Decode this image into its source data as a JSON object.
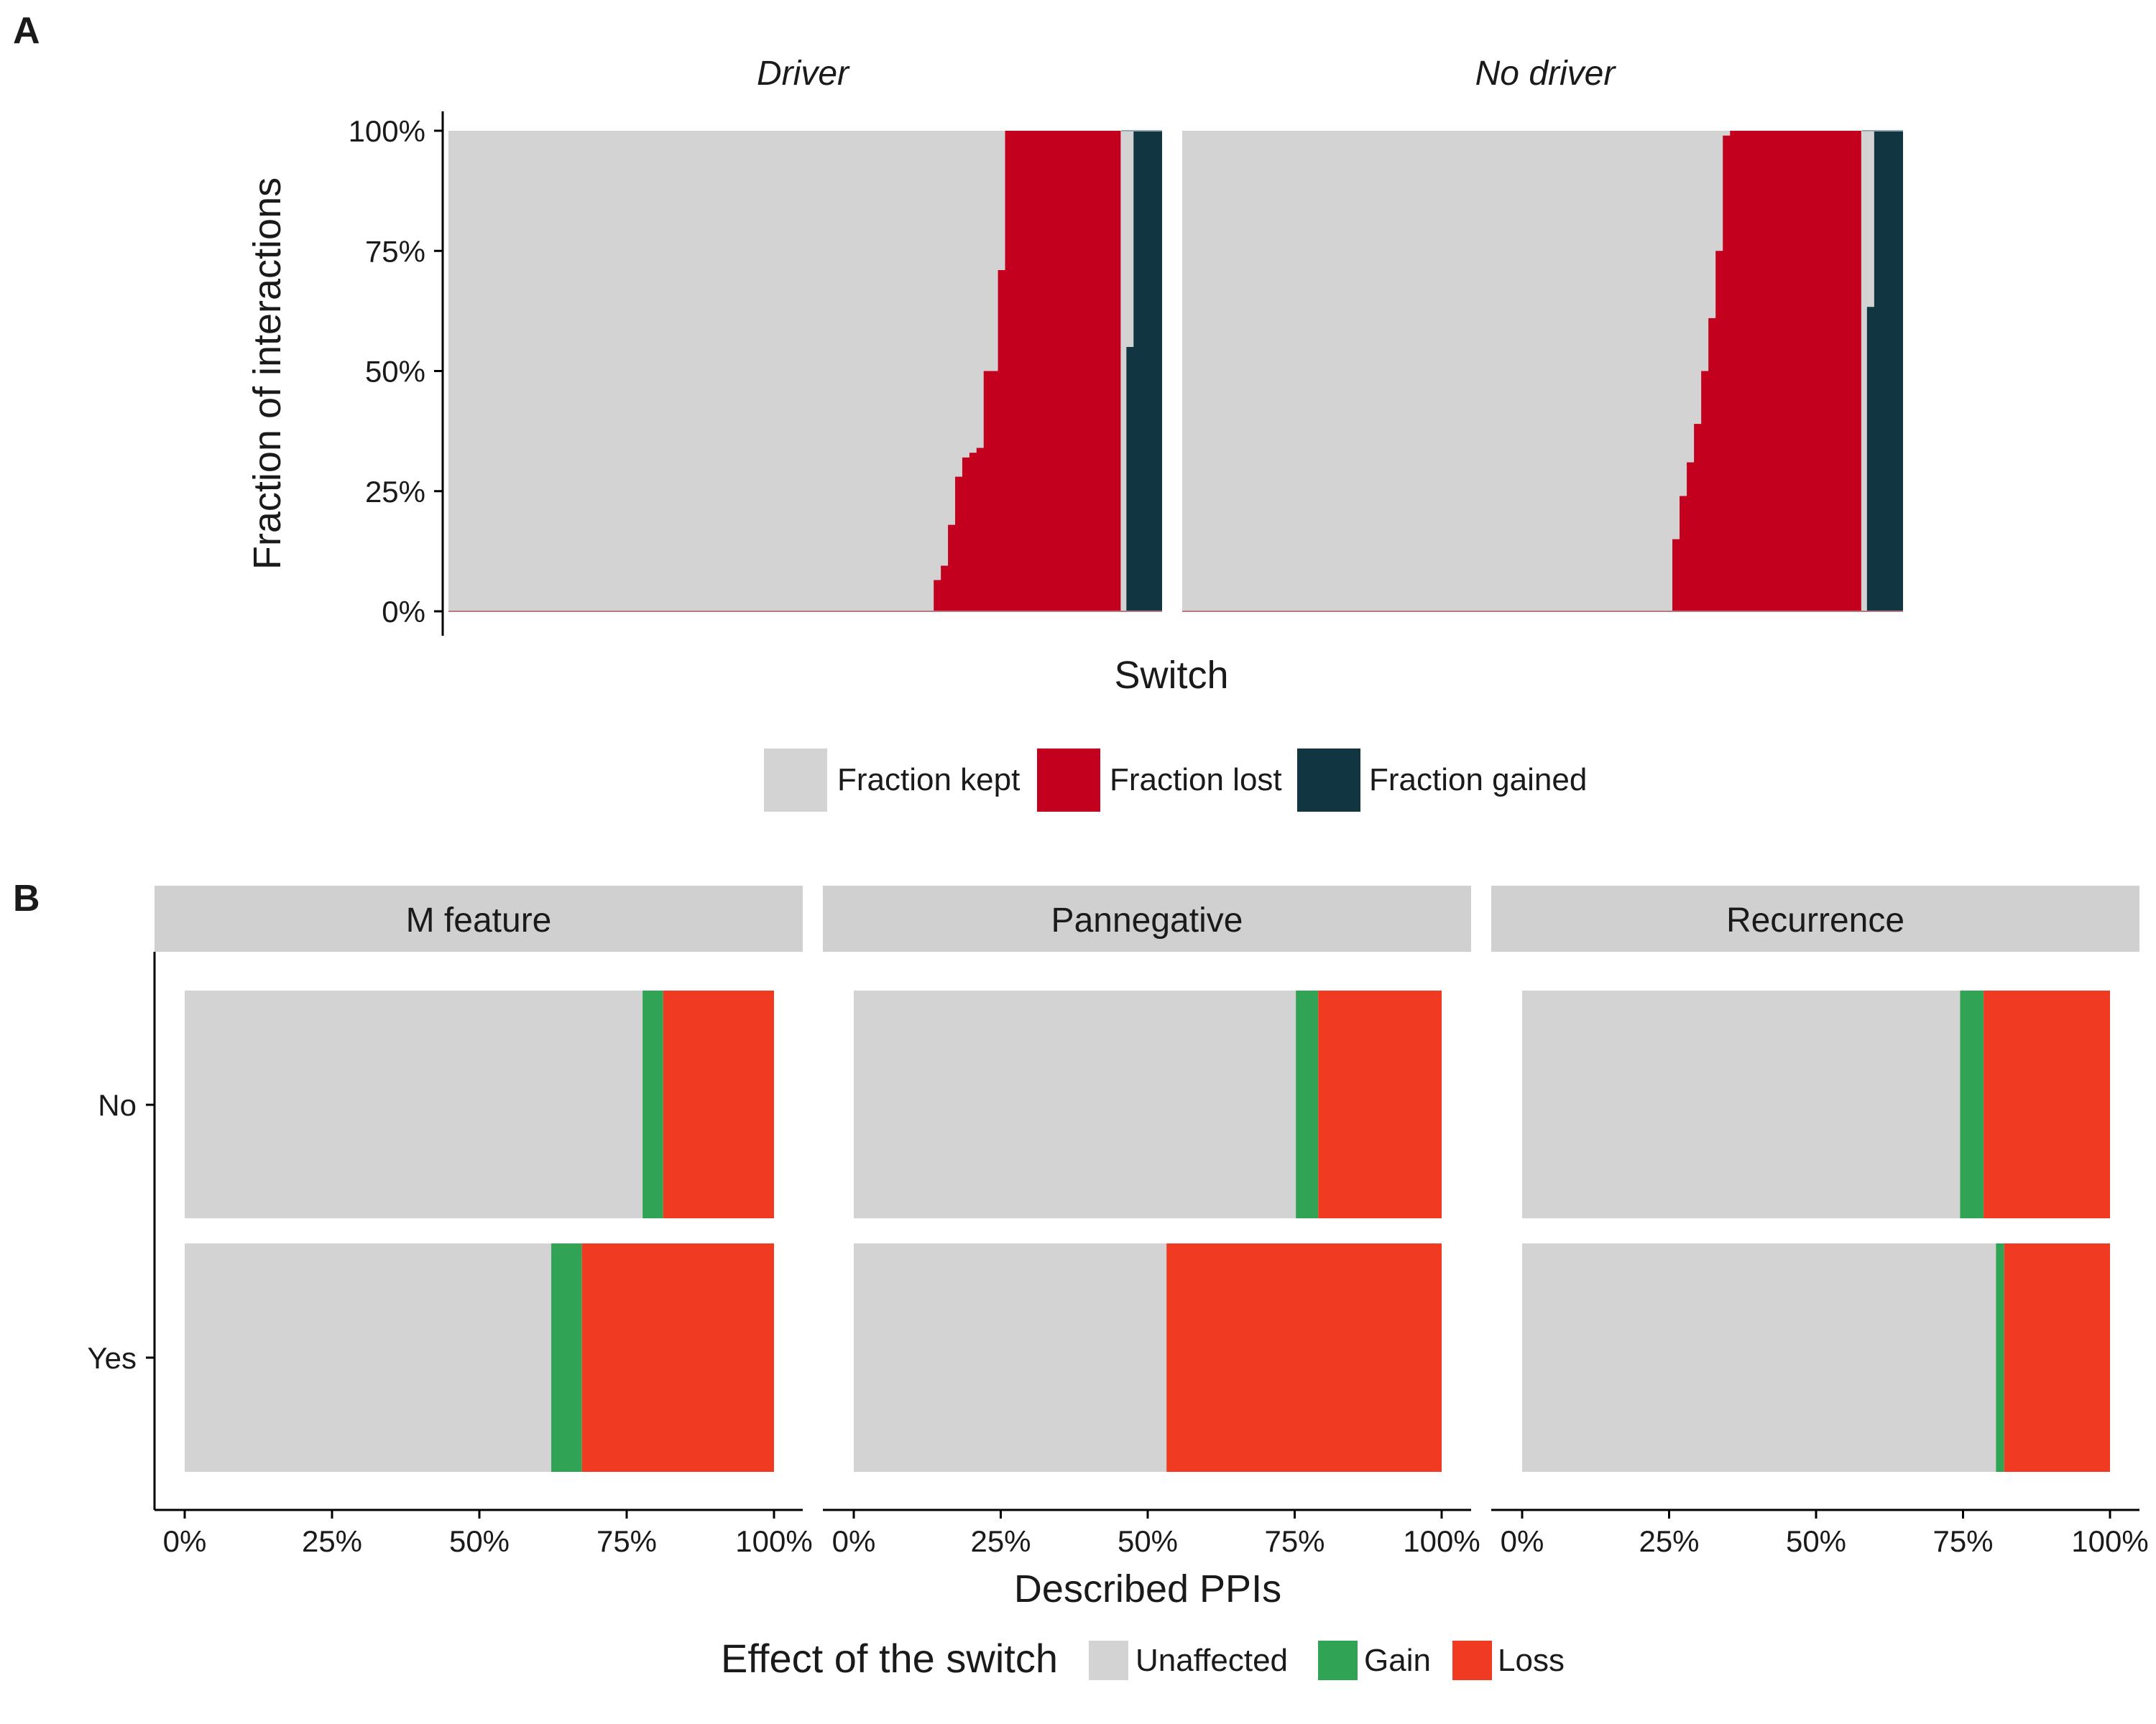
{
  "panel_a": {
    "letter": "A",
    "facets": [
      "Driver",
      "No driver"
    ],
    "ylabel": "Fraction of interactions",
    "xlabel": "Switch",
    "yticks": [
      "0%",
      "25%",
      "50%",
      "75%",
      "100%"
    ],
    "legend": [
      {
        "label": "Fraction kept",
        "color": "#d3d3d3"
      },
      {
        "label": "Fraction lost",
        "color": "#c3001e"
      },
      {
        "label": "Fraction gained",
        "color": "#123641"
      }
    ]
  },
  "panel_b": {
    "letter": "B",
    "xlabel": "Described PPIs",
    "xticks": [
      "0%",
      "25%",
      "50%",
      "75%",
      "100%"
    ],
    "legend_title": "Effect of the switch",
    "legend": [
      {
        "label": "Unaffected",
        "color": "#d3d3d3"
      },
      {
        "label": "Gain",
        "color": "#31a354"
      },
      {
        "label": "Loss",
        "color": "#f03b22"
      }
    ]
  },
  "chart_data": [
    {
      "type": "area",
      "panel": "A",
      "description_series": [
        "Fraction kept",
        "Fraction lost",
        "Fraction gained"
      ],
      "ylim": [
        0,
        1
      ],
      "facets": [
        {
          "name": "Driver",
          "n_switches": 100,
          "lost_profile": [
            [
              0,
              0
            ],
            [
              67.5,
              0
            ],
            [
              68,
              0.05
            ],
            [
              69,
              0.08
            ],
            [
              70,
              0.11
            ],
            [
              70.5,
              0.18
            ],
            [
              71,
              0.22
            ],
            [
              71.5,
              0.28
            ],
            [
              72,
              0.3
            ],
            [
              72.5,
              0.32
            ],
            [
              73,
              0.33
            ],
            [
              73.5,
              0.33
            ],
            [
              74,
              0.34
            ],
            [
              74.5,
              0.34
            ],
            [
              75,
              0.5
            ],
            [
              77,
              0.5
            ],
            [
              77.5,
              0.71
            ],
            [
              78,
              1.0
            ],
            [
              100,
              1.0
            ]
          ],
          "gained_profile": [
            [
              0,
              0
            ],
            [
              94.5,
              0
            ],
            [
              95,
              0.5
            ],
            [
              95.5,
              0.55
            ],
            [
              96,
              1.0
            ],
            [
              100,
              1.0
            ]
          ]
        },
        {
          "name": "No driver",
          "n_switches": 100,
          "lost_profile": [
            [
              0,
              0
            ],
            [
              67.5,
              0
            ],
            [
              68,
              0.1
            ],
            [
              69,
              0.2
            ],
            [
              70,
              0.28
            ],
            [
              71,
              0.34
            ],
            [
              72,
              0.44
            ],
            [
              73,
              0.56
            ],
            [
              74,
              0.66
            ],
            [
              74.5,
              0.75
            ],
            [
              75,
              0.88
            ],
            [
              75.5,
              0.99
            ],
            [
              76,
              1.0
            ],
            [
              100,
              1.0
            ]
          ],
          "gained_profile": [
            [
              0,
              0
            ],
            [
              94.5,
              0
            ],
            [
              95,
              0.2
            ],
            [
              95.3,
              0.4
            ],
            [
              95.6,
              0.75
            ],
            [
              96,
              1.0
            ],
            [
              100,
              1.0
            ]
          ]
        }
      ]
    },
    {
      "type": "bar",
      "panel": "B",
      "orientation": "horizontal",
      "stacked": true,
      "categories": [
        "No",
        "Yes"
      ],
      "xlim": [
        0,
        1
      ],
      "facets": [
        {
          "name": "M feature",
          "series": [
            {
              "name": "Unaffected",
              "values": [
                0.777,
                0.622
              ]
            },
            {
              "name": "Gain",
              "values": [
                0.035,
                0.052
              ]
            },
            {
              "name": "Loss",
              "values": [
                0.188,
                0.326
              ]
            }
          ]
        },
        {
          "name": "Pannegative",
          "series": [
            {
              "name": "Unaffected",
              "values": [
                0.752,
                0.532
              ]
            },
            {
              "name": "Gain",
              "values": [
                0.038,
                0.0
              ]
            },
            {
              "name": "Loss",
              "values": [
                0.21,
                0.468
              ]
            }
          ]
        },
        {
          "name": "Recurrence",
          "series": [
            {
              "name": "Unaffected",
              "values": [
                0.745,
                0.806
              ]
            },
            {
              "name": "Gain",
              "values": [
                0.04,
                0.014
              ]
            },
            {
              "name": "Loss",
              "values": [
                0.215,
                0.18
              ]
            }
          ]
        }
      ]
    }
  ]
}
